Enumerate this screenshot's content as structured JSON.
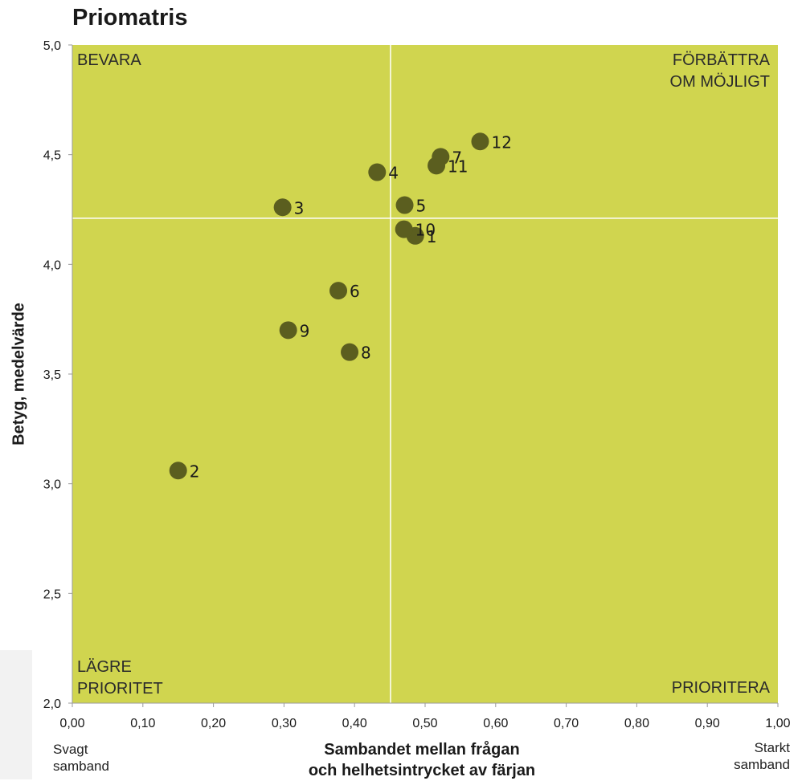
{
  "chart_data": {
    "type": "scatter",
    "title": "Priomatris",
    "xlabel_lines": [
      "Sambandet mellan frågan",
      "och helhetsintrycket av färjan"
    ],
    "ylabel": "Betyg, medelvärde",
    "xlim": [
      0.0,
      1.0
    ],
    "ylim": [
      2.0,
      5.0
    ],
    "x_ticks": [
      0.0,
      0.1,
      0.2,
      0.3,
      0.4,
      0.5,
      0.6,
      0.7,
      0.8,
      0.9,
      1.0
    ],
    "x_tick_labels": [
      "0,00",
      "0,10",
      "0,20",
      "0,30",
      "0,40",
      "0,50",
      "0,60",
      "0,70",
      "0,80",
      "0,90",
      "1,00"
    ],
    "y_ticks": [
      2.0,
      2.5,
      3.0,
      3.5,
      4.0,
      4.5,
      5.0
    ],
    "y_tick_labels": [
      "2,0",
      "2,5",
      "3,0",
      "3,5",
      "4,0",
      "4,5",
      "5,0"
    ],
    "x_note_left": [
      "Svagt",
      "samband"
    ],
    "x_note_right": [
      "Starkt",
      "samband"
    ],
    "divider_x": 0.451,
    "divider_y": 4.21,
    "quadrants": {
      "top_left": [
        "BEVARA"
      ],
      "top_right": [
        "FÖRBÄTTRA",
        "OM MÖJLIGT"
      ],
      "bottom_left": [
        "LÄGRE",
        "PRIORITET"
      ],
      "bottom_right": [
        "PRIORITERA"
      ]
    },
    "points": [
      {
        "label": "1",
        "x": 0.486,
        "y": 4.13
      },
      {
        "label": "2",
        "x": 0.15,
        "y": 3.06
      },
      {
        "label": "3",
        "x": 0.298,
        "y": 4.26
      },
      {
        "label": "4",
        "x": 0.432,
        "y": 4.42
      },
      {
        "label": "5",
        "x": 0.471,
        "y": 4.27
      },
      {
        "label": "6",
        "x": 0.377,
        "y": 3.88
      },
      {
        "label": "7",
        "x": 0.522,
        "y": 4.49
      },
      {
        "label": "8",
        "x": 0.393,
        "y": 3.6
      },
      {
        "label": "9",
        "x": 0.306,
        "y": 3.7
      },
      {
        "label": "10",
        "x": 0.47,
        "y": 4.16
      },
      {
        "label": "11",
        "x": 0.516,
        "y": 4.45
      },
      {
        "label": "12",
        "x": 0.578,
        "y": 4.56
      }
    ],
    "colors": {
      "plot_background": "#d0d54f",
      "marker": "#5b5e1f",
      "divider": "#ffffff",
      "text": "#1a1a1a"
    }
  }
}
